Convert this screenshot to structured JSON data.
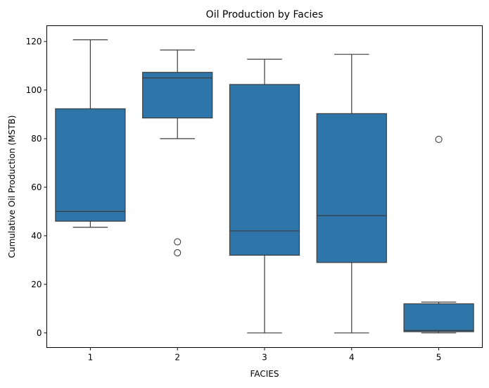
{
  "chart_data": {
    "type": "box",
    "title": "Oil Production by Facies",
    "xlabel": "FACIES",
    "ylabel": "Cumulative Oil Production (MSTB)",
    "ylim": [
      -6,
      126.5
    ],
    "yticks": [
      0,
      20,
      40,
      60,
      80,
      100,
      120
    ],
    "grid": false,
    "box_color": "#2e75aa",
    "line_color": "#3d3d3d",
    "categories": [
      "1",
      "2",
      "3",
      "4",
      "5"
    ],
    "boxes": [
      {
        "category": "1",
        "whisker_low": 43.5,
        "q1": 46.0,
        "median": 50.0,
        "q3": 92.3,
        "whisker_high": 120.7,
        "outliers": []
      },
      {
        "category": "2",
        "whisker_low": 80.0,
        "q1": 88.5,
        "median": 105.0,
        "q3": 107.3,
        "whisker_high": 116.5,
        "outliers": [
          37.5,
          33.0
        ]
      },
      {
        "category": "3",
        "whisker_low": 0.0,
        "q1": 32.0,
        "median": 42.0,
        "q3": 102.3,
        "whisker_high": 112.7,
        "outliers": []
      },
      {
        "category": "4",
        "whisker_low": 0.0,
        "q1": 29.0,
        "median": 48.3,
        "q3": 90.3,
        "whisker_high": 114.7,
        "outliers": []
      },
      {
        "category": "5",
        "whisker_low": 0.0,
        "q1": 0.5,
        "median": 1.0,
        "q3": 12.0,
        "whisker_high": 12.7,
        "outliers": [
          79.7
        ]
      }
    ]
  }
}
